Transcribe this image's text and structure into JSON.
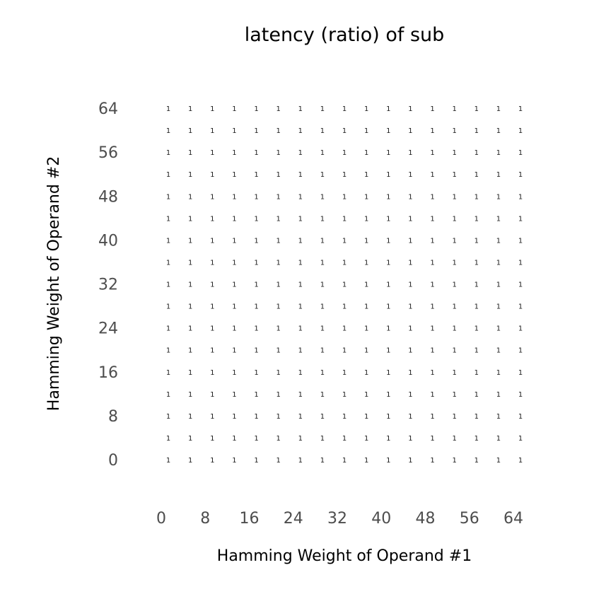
{
  "chart_data": {
    "type": "heatmap",
    "title": "latency (ratio) of sub",
    "xlabel": "Hamming Weight of Operand #1",
    "ylabel": "Hamming Weight of Operand #2",
    "x": [
      0,
      4,
      8,
      12,
      16,
      20,
      24,
      28,
      32,
      36,
      40,
      44,
      48,
      52,
      56,
      60,
      64
    ],
    "y": [
      0,
      4,
      8,
      12,
      16,
      20,
      24,
      28,
      32,
      36,
      40,
      44,
      48,
      52,
      56,
      60,
      64
    ],
    "cell_value": 1,
    "x_ticks": [
      0,
      8,
      16,
      24,
      32,
      40,
      48,
      56,
      64
    ],
    "y_ticks": [
      0,
      8,
      16,
      24,
      32,
      40,
      48,
      56,
      64
    ],
    "xlim": [
      0,
      64
    ],
    "ylim": [
      0,
      64
    ],
    "grid": false,
    "legend": "none"
  }
}
